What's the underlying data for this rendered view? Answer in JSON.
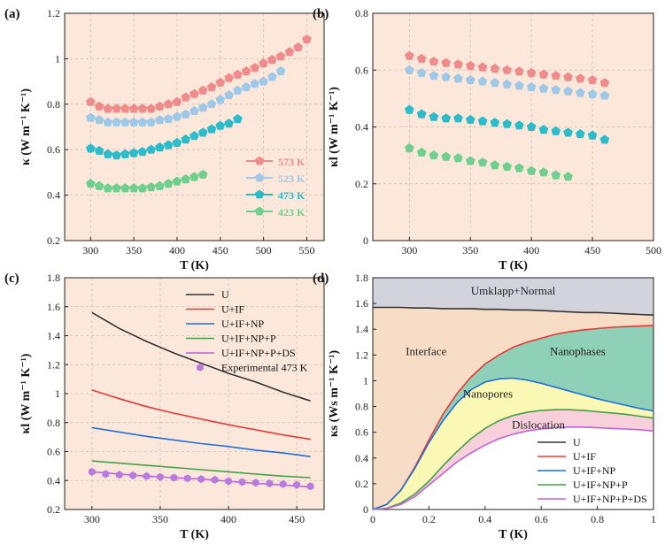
{
  "chart_data": [
    {
      "type": "scatter",
      "panel_label": "(a)",
      "title": "",
      "xlabel": "T (K)",
      "ylabel": "κ (W m⁻¹ K⁻¹)",
      "xlim": [
        270,
        570
      ],
      "ylim": [
        0.2,
        1.2
      ],
      "xticks": [
        300,
        350,
        400,
        450,
        500,
        550
      ],
      "yticks": [
        0.2,
        0.4,
        0.6,
        0.8,
        1.0,
        1.2
      ],
      "ytick_labels": [
        "0.2",
        "0.4",
        "0.6",
        "0.8",
        "1",
        "1.2"
      ],
      "legend_position": "lower-right",
      "series": [
        {
          "name": "573 K",
          "color": "#f08b8b",
          "x": [
            300,
            310,
            320,
            330,
            340,
            350,
            360,
            370,
            380,
            390,
            400,
            410,
            420,
            430,
            440,
            450,
            460,
            470,
            480,
            490,
            500,
            510,
            520,
            530,
            540,
            550
          ],
          "y": [
            0.81,
            0.79,
            0.78,
            0.78,
            0.78,
            0.78,
            0.78,
            0.78,
            0.79,
            0.8,
            0.81,
            0.83,
            0.845,
            0.86,
            0.875,
            0.895,
            0.915,
            0.93,
            0.945,
            0.96,
            0.98,
            0.995,
            1.01,
            1.03,
            1.05,
            1.085
          ]
        },
        {
          "name": "523 K",
          "color": "#9fc8e8",
          "x": [
            300,
            310,
            320,
            330,
            340,
            350,
            360,
            370,
            380,
            390,
            400,
            410,
            420,
            430,
            440,
            450,
            460,
            470,
            480,
            490,
            500,
            510,
            520
          ],
          "y": [
            0.74,
            0.73,
            0.72,
            0.72,
            0.72,
            0.72,
            0.72,
            0.72,
            0.73,
            0.735,
            0.745,
            0.755,
            0.77,
            0.785,
            0.8,
            0.82,
            0.84,
            0.86,
            0.875,
            0.89,
            0.9,
            0.92,
            0.945
          ]
        },
        {
          "name": "473 K",
          "color": "#2bbccc",
          "x": [
            300,
            310,
            320,
            330,
            340,
            350,
            360,
            370,
            380,
            390,
            400,
            410,
            420,
            430,
            440,
            450,
            460,
            470
          ],
          "y": [
            0.605,
            0.595,
            0.58,
            0.575,
            0.58,
            0.585,
            0.59,
            0.6,
            0.61,
            0.62,
            0.63,
            0.645,
            0.66,
            0.675,
            0.69,
            0.705,
            0.715,
            0.735
          ]
        },
        {
          "name": "423 K",
          "color": "#6fcf8e",
          "x": [
            300,
            310,
            320,
            330,
            340,
            350,
            360,
            370,
            380,
            390,
            400,
            410,
            420,
            430
          ],
          "y": [
            0.45,
            0.44,
            0.43,
            0.43,
            0.43,
            0.43,
            0.43,
            0.435,
            0.44,
            0.45,
            0.46,
            0.47,
            0.48,
            0.49
          ]
        }
      ]
    },
    {
      "type": "scatter",
      "panel_label": "(b)",
      "title": "",
      "xlabel": "T (K)",
      "ylabel": "κl (W m⁻¹ K⁻¹)",
      "xlim": [
        270,
        500
      ],
      "ylim": [
        0,
        0.8
      ],
      "xticks": [
        300,
        350,
        400,
        450,
        500
      ],
      "yticks": [
        0,
        0.2,
        0.4,
        0.6,
        0.8
      ],
      "ytick_labels": [
        "0",
        "0.2",
        "0.4",
        "0.6",
        "0.8"
      ],
      "series": [
        {
          "name": "573 K",
          "color": "#f08b8b",
          "x": [
            300,
            310,
            320,
            330,
            340,
            350,
            360,
            370,
            380,
            390,
            400,
            410,
            420,
            430,
            440,
            450,
            460
          ],
          "y": [
            0.65,
            0.64,
            0.63,
            0.625,
            0.62,
            0.615,
            0.61,
            0.605,
            0.6,
            0.595,
            0.59,
            0.585,
            0.58,
            0.575,
            0.57,
            0.565,
            0.555
          ]
        },
        {
          "name": "523 K",
          "color": "#9fc8e8",
          "x": [
            300,
            310,
            320,
            330,
            340,
            350,
            360,
            370,
            380,
            390,
            400,
            410,
            420,
            430,
            440,
            450,
            460
          ],
          "y": [
            0.6,
            0.59,
            0.58,
            0.575,
            0.57,
            0.565,
            0.56,
            0.555,
            0.55,
            0.545,
            0.54,
            0.535,
            0.53,
            0.525,
            0.52,
            0.515,
            0.51
          ]
        },
        {
          "name": "473 K",
          "color": "#2bbccc",
          "x": [
            300,
            310,
            320,
            330,
            340,
            350,
            360,
            370,
            380,
            390,
            400,
            410,
            420,
            430,
            440,
            450,
            460
          ],
          "y": [
            0.46,
            0.445,
            0.435,
            0.43,
            0.43,
            0.425,
            0.42,
            0.415,
            0.41,
            0.405,
            0.4,
            0.39,
            0.385,
            0.38,
            0.375,
            0.37,
            0.355
          ]
        },
        {
          "name": "423 K",
          "color": "#6fcf8e",
          "x": [
            300,
            310,
            320,
            330,
            340,
            350,
            360,
            370,
            380,
            390,
            400,
            410,
            420,
            430
          ],
          "y": [
            0.325,
            0.31,
            0.3,
            0.295,
            0.29,
            0.28,
            0.275,
            0.265,
            0.26,
            0.255,
            0.245,
            0.24,
            0.23,
            0.225
          ]
        }
      ]
    },
    {
      "type": "line",
      "panel_label": "(c)",
      "title": "",
      "xlabel": "T (K)",
      "ylabel": "κl (W m⁻¹ K⁻¹)",
      "xlim": [
        280,
        470
      ],
      "ylim": [
        0.2,
        1.8
      ],
      "xticks": [
        300,
        350,
        400,
        450
      ],
      "yticks": [
        0.2,
        0.4,
        0.6,
        0.8,
        1.0,
        1.2,
        1.4,
        1.6,
        1.8
      ],
      "ytick_labels": [
        "0.2",
        "0.4",
        "0.6",
        "0.8",
        "1",
        "1.2",
        "1.4",
        "1.6",
        "1.8"
      ],
      "legend_position": "top-right",
      "series": [
        {
          "name": "U",
          "color": "#333333",
          "x": [
            300,
            320,
            340,
            360,
            380,
            400,
            420,
            440,
            460
          ],
          "y": [
            1.56,
            1.45,
            1.36,
            1.28,
            1.21,
            1.14,
            1.08,
            1.01,
            0.95
          ]
        },
        {
          "name": "U+IF",
          "color": "#e53935",
          "x": [
            300,
            320,
            340,
            360,
            380,
            400,
            420,
            440,
            460
          ],
          "y": [
            1.025,
            0.965,
            0.91,
            0.865,
            0.825,
            0.785,
            0.75,
            0.715,
            0.685
          ]
        },
        {
          "name": "U+IF+NP",
          "color": "#1e6fd9",
          "x": [
            300,
            320,
            340,
            360,
            380,
            400,
            420,
            440,
            460
          ],
          "y": [
            0.765,
            0.735,
            0.705,
            0.68,
            0.655,
            0.635,
            0.61,
            0.59,
            0.565
          ]
        },
        {
          "name": "U+IF+NP+P",
          "color": "#43a047",
          "x": [
            300,
            320,
            340,
            360,
            380,
            400,
            420,
            440,
            460
          ],
          "y": [
            0.535,
            0.52,
            0.505,
            0.49,
            0.475,
            0.46,
            0.445,
            0.43,
            0.42
          ]
        },
        {
          "name": "U+IF+NP+P+DS",
          "color": "#c061e0",
          "x": [
            300,
            320,
            340,
            360,
            380,
            400,
            420,
            440,
            460
          ],
          "y": [
            0.46,
            0.445,
            0.43,
            0.42,
            0.41,
            0.395,
            0.38,
            0.37,
            0.355
          ]
        }
      ],
      "experimental": {
        "name": "Experimental 473 K",
        "color": "#b77be0",
        "x": [
          300,
          310,
          320,
          330,
          340,
          350,
          360,
          370,
          380,
          390,
          400,
          410,
          420,
          430,
          440,
          450,
          460
        ],
        "y": [
          0.46,
          0.445,
          0.44,
          0.435,
          0.43,
          0.425,
          0.42,
          0.415,
          0.41,
          0.405,
          0.395,
          0.39,
          0.385,
          0.38,
          0.375,
          0.37,
          0.36
        ]
      }
    },
    {
      "type": "area",
      "panel_label": "(d)",
      "title": "",
      "xlabel": "T (K)",
      "ylabel": "κs (Ws m⁻¹ K⁻¹)",
      "xlim": [
        0,
        1
      ],
      "ylim": [
        0,
        1.8
      ],
      "xticks": [
        0,
        0.2,
        0.4,
        0.6,
        0.8,
        1
      ],
      "xtick_labels": [
        "0",
        "0.2",
        "0.4",
        "0.6",
        "0.8",
        "1"
      ],
      "yticks": [
        0,
        0.2,
        0.4,
        0.6,
        0.8,
        1.0,
        1.2,
        1.4,
        1.6,
        1.8
      ],
      "ytick_labels": [
        "0",
        "0.2",
        "0.4",
        "0.6",
        "0.8",
        "1",
        "1.2",
        "1.4",
        "1.6",
        "1.8"
      ],
      "legend_position": "lower-right",
      "region_labels": [
        "Umklapp+Normal",
        "Interface",
        "Nanophases",
        "Nanopores",
        "Dislocation"
      ],
      "x": [
        0,
        0.05,
        0.1,
        0.15,
        0.2,
        0.25,
        0.3,
        0.35,
        0.4,
        0.45,
        0.5,
        0.55,
        0.6,
        0.65,
        0.7,
        0.75,
        0.8,
        0.85,
        0.9,
        0.95,
        1.0
      ],
      "series": [
        {
          "name": "U",
          "color": "#333333",
          "fill": "#d3d3dc",
          "y": [
            1.57,
            1.57,
            1.57,
            1.565,
            1.565,
            1.56,
            1.56,
            1.56,
            1.555,
            1.555,
            1.55,
            1.55,
            1.545,
            1.54,
            1.535,
            1.53,
            1.53,
            1.525,
            1.52,
            1.515,
            1.51
          ]
        },
        {
          "name": "U+IF",
          "color": "#e53935",
          "fill": "#f7dcc6",
          "y": [
            0,
            0.04,
            0.15,
            0.33,
            0.54,
            0.74,
            0.9,
            1.03,
            1.13,
            1.2,
            1.26,
            1.3,
            1.33,
            1.36,
            1.38,
            1.395,
            1.405,
            1.415,
            1.42,
            1.425,
            1.43
          ]
        },
        {
          "name": "U+IF+NP",
          "color": "#1e6fd9",
          "fill": "#8fd0b8",
          "y": [
            0,
            0.04,
            0.15,
            0.32,
            0.52,
            0.69,
            0.83,
            0.93,
            0.99,
            1.015,
            1.02,
            1.005,
            0.98,
            0.95,
            0.92,
            0.89,
            0.86,
            0.835,
            0.81,
            0.785,
            0.765
          ]
        },
        {
          "name": "U+IF+NP+P",
          "color": "#43a047",
          "fill": "#fbf7b4",
          "y": [
            0,
            0.01,
            0.05,
            0.12,
            0.22,
            0.34,
            0.45,
            0.55,
            0.63,
            0.69,
            0.73,
            0.755,
            0.77,
            0.775,
            0.775,
            0.77,
            0.76,
            0.75,
            0.74,
            0.725,
            0.71
          ]
        },
        {
          "name": "U+IF+NP+P+DS",
          "color": "#c061e0",
          "fill": "#f7d0dc",
          "y": [
            0,
            0.008,
            0.04,
            0.1,
            0.19,
            0.28,
            0.37,
            0.44,
            0.5,
            0.55,
            0.585,
            0.61,
            0.625,
            0.635,
            0.64,
            0.64,
            0.635,
            0.63,
            0.625,
            0.62,
            0.61
          ]
        }
      ]
    }
  ]
}
